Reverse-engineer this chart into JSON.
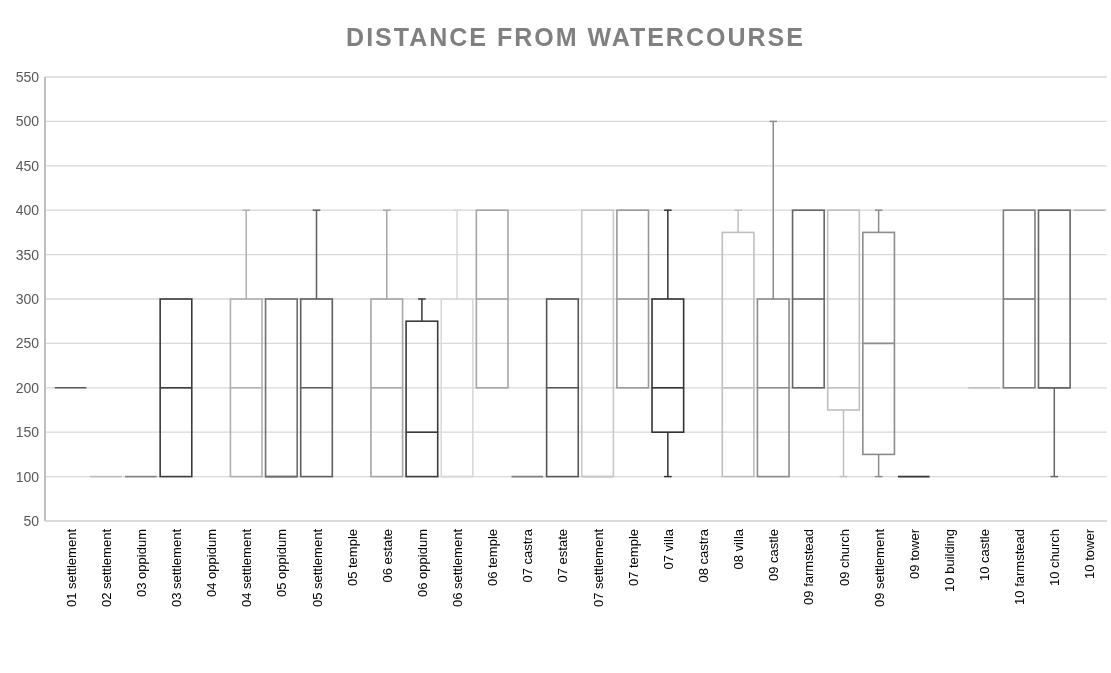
{
  "chart_data": {
    "type": "box",
    "title": "DISTANCE FROM WATERCOURSE",
    "categories": [
      "01 settlement",
      "02 settlement",
      "03 oppidum",
      "03 settlement",
      "04 oppidum",
      "04 settlement",
      "05 oppidum",
      "05 settlement",
      "05 temple",
      "06 estate",
      "06 oppidum",
      "06 settlement",
      "06 temple",
      "07 castra",
      "07 estate",
      "07 settlement",
      "07 temple",
      "07 villa",
      "08 castra",
      "08 villa",
      "09 castle",
      "09 farmstead",
      "09 church",
      "09 settlement",
      "09 tower",
      "10 building",
      "10 castle",
      "10 farmstead",
      "10 church",
      "10 tower"
    ],
    "boxes": [
      {
        "low": 200,
        "q1": 200,
        "median": 200,
        "q3": 200,
        "high": 200
      },
      {
        "low": 100,
        "q1": 100,
        "median": 100,
        "q3": 100,
        "high": 100
      },
      {
        "low": 100,
        "q1": 100,
        "median": 100,
        "q3": 100,
        "high": 100
      },
      {
        "low": 100,
        "q1": 100,
        "median": 200,
        "q3": 300,
        "high": 300
      },
      null,
      {
        "low": 100,
        "q1": 100,
        "median": 200,
        "q3": 300,
        "high": 400
      },
      {
        "low": 100,
        "q1": 100,
        "median": 100,
        "q3": 300,
        "high": 300
      },
      {
        "low": 100,
        "q1": 100,
        "median": 200,
        "q3": 300,
        "high": 400
      },
      null,
      {
        "low": 100,
        "q1": 100,
        "median": 200,
        "q3": 300,
        "high": 400
      },
      {
        "low": 100,
        "q1": 100,
        "median": 150,
        "q3": 275,
        "high": 300
      },
      {
        "low": 100,
        "q1": 100,
        "median": 100,
        "q3": 300,
        "high": 400
      },
      {
        "low": 200,
        "q1": 200,
        "median": 300,
        "q3": 400,
        "high": 400
      },
      {
        "low": 100,
        "q1": 100,
        "median": 100,
        "q3": 100,
        "high": 100
      },
      {
        "low": 100,
        "q1": 100,
        "median": 200,
        "q3": 300,
        "high": 300
      },
      {
        "low": 100,
        "q1": 100,
        "median": 100,
        "q3": 400,
        "high": 400
      },
      {
        "low": 200,
        "q1": 200,
        "median": 300,
        "q3": 400,
        "high": 400
      },
      {
        "low": 100,
        "q1": 150,
        "median": 200,
        "q3": 300,
        "high": 400
      },
      null,
      {
        "low": 100,
        "q1": 100,
        "median": 200,
        "q3": 375,
        "high": 400
      },
      {
        "low": 100,
        "q1": 100,
        "median": 200,
        "q3": 300,
        "high": 500
      },
      {
        "low": 200,
        "q1": 200,
        "median": 300,
        "q3": 400,
        "high": 400
      },
      {
        "low": 100,
        "q1": 175,
        "median": 200,
        "q3": 400,
        "high": 400
      },
      {
        "low": 100,
        "q1": 125,
        "median": 250,
        "q3": 375,
        "high": 400
      },
      {
        "low": 100,
        "q1": 100,
        "median": 100,
        "q3": 100,
        "high": 100
      },
      null,
      {
        "low": 200,
        "q1": 200,
        "median": 200,
        "q3": 200,
        "high": 200
      },
      {
        "low": 200,
        "q1": 200,
        "median": 300,
        "q3": 400,
        "high": 400
      },
      {
        "low": 100,
        "q1": 200,
        "median": 200,
        "q3": 400,
        "high": 400
      },
      {
        "low": 400,
        "q1": 400,
        "median": 400,
        "q3": 400,
        "high": 400
      }
    ],
    "colors": [
      "#595959",
      "#bfbfbf",
      "#7f7f7f",
      "#3a3a3a",
      null,
      "#b0b0b0",
      "#6e6e6e",
      "#5f5f5f",
      null,
      "#a6a6a6",
      "#3a3a3a",
      "#d9d9d9",
      "#a6a6a6",
      "#808080",
      "#555555",
      "#c8c8c8",
      "#999999",
      "#333333",
      null,
      "#bfbfbf",
      "#8c8c8c",
      "#666666",
      "#bfbfbf",
      "#8c8c8c",
      "#333333",
      null,
      "#bfbfbf",
      "#7f7f7f",
      "#666666",
      "#b0b0b0"
    ],
    "ylim": [
      50,
      550
    ],
    "yticks": [
      50,
      100,
      150,
      200,
      250,
      300,
      350,
      400,
      450,
      500,
      550
    ],
    "grid": true
  }
}
